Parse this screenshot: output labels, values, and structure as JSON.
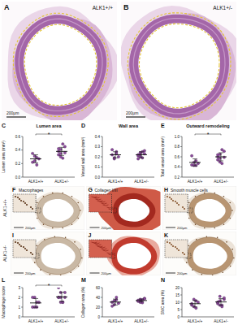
{
  "figure": {
    "top_panels": [
      {
        "panel_label": "A",
        "label": "ALK1+/+",
        "scale_bar": "200µm"
      },
      {
        "panel_label": "B",
        "label": "ALK1+/-",
        "scale_bar": "200µm"
      }
    ],
    "stain_rows": [
      {
        "label": "ALK1+/+",
        "panels": [
          {
            "panel_label": "F",
            "title": "Macrophages",
            "scale_bar": "200µm"
          },
          {
            "panel_label": "G",
            "title": "Collagen I/III",
            "scale_bar": "200µm"
          },
          {
            "panel_label": "H",
            "title": "Smooth muscle cells",
            "scale_bar": "200µm"
          }
        ]
      },
      {
        "label": "ALK1+/-",
        "panels": [
          {
            "panel_label": "I",
            "scale_bar": "200µm"
          },
          {
            "panel_label": "J",
            "scale_bar": "200µm"
          },
          {
            "panel_label": "K",
            "scale_bar": "200µm"
          }
        ]
      }
    ]
  },
  "chart_data": [
    {
      "panel_label": "C",
      "type": "scatter",
      "title": "Lumen area",
      "y_label": "Lumen area (mm²)",
      "categories": [
        "ALK1+/+",
        "ALK1+/-"
      ],
      "values": [
        [
          0.22,
          0.31,
          0.18,
          0.27,
          0.35,
          0.24,
          0.29
        ],
        [
          0.33,
          0.41,
          0.28,
          0.45,
          0.38,
          0.3,
          0.49,
          0.36,
          0.42,
          0.35
        ]
      ],
      "mean": [
        0.27,
        0.38
      ],
      "error": [
        0.06,
        0.06
      ],
      "color": "#8b4a9c",
      "ylim": [
        0,
        0.6
      ],
      "yticks": [
        {
          "value": 0,
          "label": "0.0"
        },
        0.2,
        0.4,
        0.6
      ],
      "annotations": [
        "*"
      ]
    },
    {
      "panel_label": "D",
      "type": "scatter",
      "title": "Wall area",
      "y_label": "Vessel wall area (mm²)",
      "categories": [
        "ALK1+/+",
        "ALK1+/-"
      ],
      "values": [
        [
          0.22,
          0.18,
          0.25,
          0.2,
          0.27,
          0.19,
          0.23
        ],
        [
          0.21,
          0.24,
          0.19,
          0.26,
          0.22,
          0.2,
          0.25,
          0.23,
          0.18,
          0.22
        ]
      ],
      "mean": [
        0.22,
        0.22
      ],
      "error": [
        0.03,
        0.03
      ],
      "color": "#8b4a9c",
      "ylim": [
        0,
        0.4
      ],
      "yticks": [
        {
          "value": 0,
          "label": "0.0"
        },
        0.1,
        0.2,
        0.3,
        0.4
      ]
    },
    {
      "panel_label": "E",
      "type": "scatter",
      "title": "Outward remodeling",
      "y_label": "Total vessel area (mm²)",
      "categories": [
        "ALK1+/+",
        "ALK1+/-"
      ],
      "values": [
        [
          0.44,
          0.49,
          0.43,
          0.47,
          0.62,
          0.43,
          0.52
        ],
        [
          0.54,
          0.65,
          0.47,
          0.71,
          0.6,
          0.5,
          0.74,
          0.59,
          0.64,
          0.57
        ]
      ],
      "mean": [
        0.49,
        0.6
      ],
      "error": [
        0.07,
        0.08
      ],
      "color": "#8b4a9c",
      "ylim": [
        0.2,
        1.0
      ],
      "yticks": [
        0.2,
        0.4,
        0.6,
        0.8,
        {
          "value": 1.0,
          "label": "1.0"
        }
      ],
      "annotations": [
        "*"
      ]
    },
    {
      "panel_label": "L",
      "type": "scatter",
      "y_label": "Macrophage score",
      "categories": [
        "ALK1+/+",
        "ALK1+/-"
      ],
      "values": [
        [
          1,
          2,
          1,
          1.5,
          2,
          1,
          1.5
        ],
        [
          2,
          2.5,
          1.5,
          2,
          3,
          2,
          1.5,
          2.5,
          2,
          1.5
        ]
      ],
      "mean": [
        1.43,
        2.05
      ],
      "error": [
        0.45,
        0.49
      ],
      "color": "#8b4a9c",
      "ylim": [
        0,
        3
      ],
      "yticks": [
        0,
        1,
        2,
        3
      ],
      "annotations": [
        "*"
      ]
    },
    {
      "panel_label": "M",
      "type": "scatter",
      "y_label": "Collagen area (%)",
      "categories": [
        "ALK1+/+",
        "ALK1+/-"
      ],
      "values": [
        [
          30,
          25,
          35,
          28,
          22,
          33,
          40
        ],
        [
          32,
          36,
          29,
          38,
          34,
          31,
          35,
          37,
          33,
          30
        ]
      ],
      "mean": [
        30.4,
        33.5
      ],
      "error": [
        6.1,
        3.0
      ],
      "color": "#8b4a9c",
      "ylim": [
        0,
        60
      ],
      "yticks": [
        0,
        20,
        40,
        60
      ]
    },
    {
      "panel_label": "N",
      "type": "scatter",
      "y_label": "SMC area (%)",
      "categories": [
        "ALK1+/+",
        "ALK1+/-"
      ],
      "values": [
        [
          8,
          12,
          6,
          10,
          9,
          7,
          11
        ],
        [
          10,
          14,
          8,
          12,
          9,
          11,
          7,
          13,
          10,
          8
        ]
      ],
      "mean": [
        9,
        10.2
      ],
      "error": [
        2.2,
        2.3
      ],
      "color": "#8b4a9c",
      "ylim": [
        0,
        20
      ],
      "yticks": [
        0,
        5,
        10,
        15,
        20
      ]
    }
  ]
}
